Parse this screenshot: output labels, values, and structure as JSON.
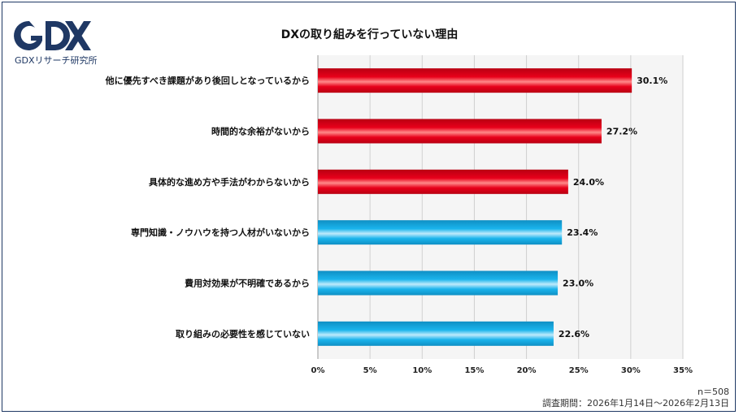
{
  "brand": {
    "logo_text": "GDX",
    "caption": "GDXリサーチ研究所"
  },
  "colors": {
    "red": "#e8001a",
    "blue": "#1ab4ec",
    "plot_bg": "#f5f5f5"
  },
  "chart_data": {
    "type": "bar",
    "orientation": "horizontal",
    "title": "DXの取り組みを行っていない理由",
    "categories": [
      "他に優先すべき課題があり後回しとなっているから",
      "時間的な余裕がないから",
      "具体的な進め方や手法がわからないから",
      "専門知識・ノウハウを持つ人材がいないから",
      "費用対効果が不明確であるから",
      "取り組みの必要性を感じていない"
    ],
    "values": [
      30.1,
      27.2,
      24.0,
      23.4,
      23.0,
      22.6
    ],
    "value_labels": [
      "30.1%",
      "27.2%",
      "24.0%",
      "23.4%",
      "23.0%",
      "22.6%"
    ],
    "bar_colors": [
      "red",
      "red",
      "red",
      "blue",
      "blue",
      "blue"
    ],
    "xlim": [
      0,
      35
    ],
    "xticks": [
      0,
      5,
      10,
      15,
      20,
      25,
      30,
      35
    ],
    "xtick_labels": [
      "0%",
      "5%",
      "10%",
      "15%",
      "20%",
      "25%",
      "30%",
      "35%"
    ],
    "grid": true,
    "legend": "none"
  },
  "notes": {
    "sample": "n＝508",
    "period": "調査期間：2026年1月14日～2026年2月13日"
  }
}
